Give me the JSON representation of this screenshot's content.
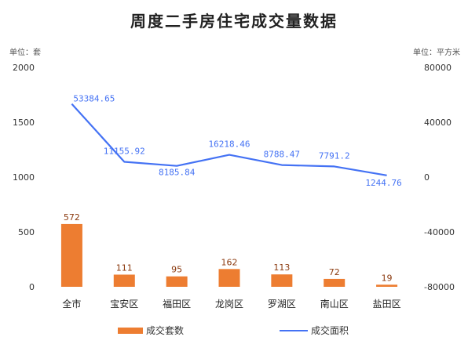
{
  "chart_data": {
    "type": "bar",
    "title": "周度二手房住宅成交量数据",
    "left_unit": "单位：套",
    "right_unit": "单位：平方米",
    "categories": [
      "全市",
      "宝安区",
      "福田区",
      "龙岗区",
      "罗湖区",
      "南山区",
      "盐田区"
    ],
    "series": [
      {
        "name": "成交套数",
        "type": "bar",
        "axis": "left",
        "color": "#ED7D31",
        "values": [
          572,
          111,
          95,
          162,
          113,
          72,
          19
        ],
        "labels": [
          "572",
          "111",
          "95",
          "162",
          "113",
          "72",
          "19"
        ]
      },
      {
        "name": "成交面积",
        "type": "line",
        "axis": "right",
        "color": "#4472F4",
        "values": [
          53384.65,
          11155.92,
          8185.84,
          16218.46,
          8788.47,
          7791.2,
          1244.76
        ],
        "labels": [
          "53384.65",
          "11155.92",
          "8185.84",
          "16218.46",
          "8788.47",
          "7791.2",
          "1244.76"
        ]
      }
    ],
    "left_axis": {
      "min": 0,
      "max": 2000,
      "ticks": [
        0,
        500,
        1000,
        1500,
        2000
      ]
    },
    "right_axis": {
      "min": -80000,
      "max": 80000,
      "ticks": [
        -80000,
        -40000,
        0,
        40000,
        80000
      ]
    },
    "grid": false,
    "legend_position": "bottom"
  }
}
